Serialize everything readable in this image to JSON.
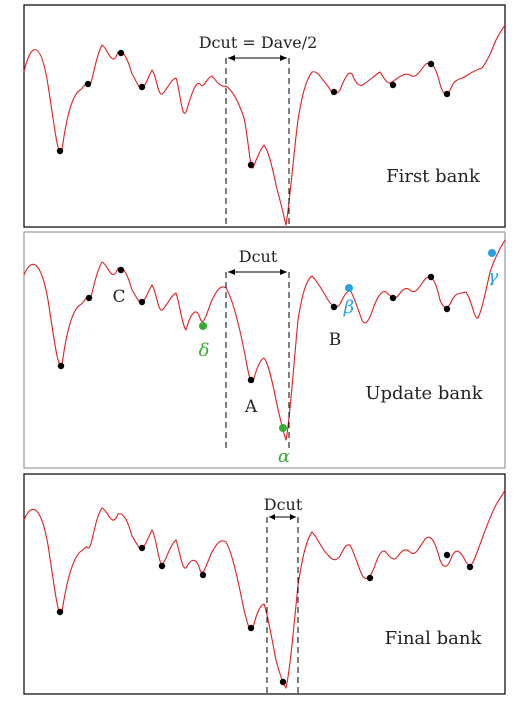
{
  "colors": {
    "curve": "#e02020",
    "dot": "#000000",
    "green": "#3aaa35",
    "blue": "#29a3df"
  },
  "panels": [
    {
      "name": "first",
      "caption": "First bank",
      "dcut_label": "Dcut = Dave/2",
      "point_labels": []
    },
    {
      "name": "update",
      "caption": "Update bank",
      "dcut_label": "Dcut",
      "point_labels": [
        "A",
        "B",
        "C"
      ],
      "greek_labels": {
        "alpha": "α",
        "beta": "β",
        "gamma": "γ",
        "delta": "δ"
      }
    },
    {
      "name": "final",
      "caption": "Final bank",
      "dcut_label": "Dcut",
      "point_labels": []
    }
  ]
}
